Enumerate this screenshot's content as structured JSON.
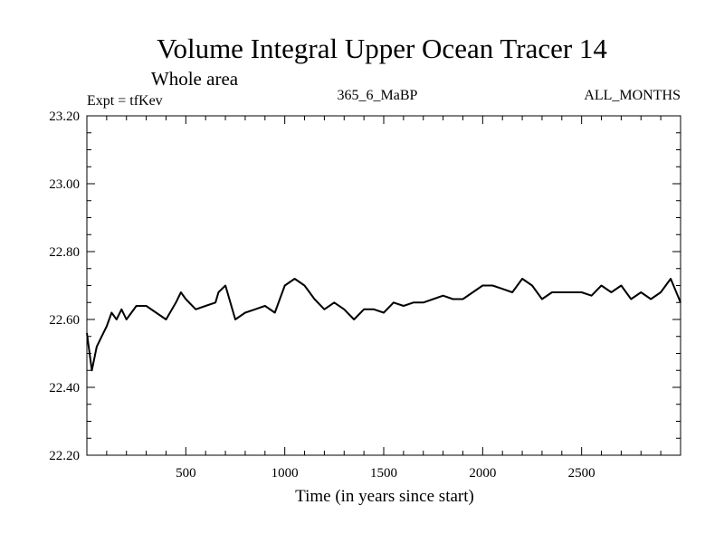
{
  "chart_data": {
    "type": "line",
    "title": "Volume Integral Upper Ocean Tracer 14",
    "subtitle": "Whole area",
    "annotations": {
      "left": "Expt = tfKev",
      "center": "365_6_MaBP",
      "right": "ALL_MONTHS"
    },
    "xlabel": "Time (in years since start)",
    "ylabel": "",
    "xlim": [
      0,
      3000
    ],
    "ylim": [
      22.2,
      23.2
    ],
    "x_ticks": [
      500,
      1000,
      1500,
      2000,
      2500
    ],
    "x_tick_labels": [
      "500",
      "1000",
      "1500",
      "2000",
      "2500"
    ],
    "y_ticks": [
      22.2,
      22.4,
      22.6,
      22.8,
      23.0,
      23.2
    ],
    "y_tick_labels": [
      "22.20",
      "22.40",
      "22.60",
      "22.80",
      "23.00",
      "23.20"
    ],
    "grid": false,
    "legend": "none",
    "series_color": "#000000",
    "series": [
      {
        "x": [
          0,
          25,
          50,
          75,
          100,
          125,
          150,
          175,
          200,
          250,
          300,
          350,
          400,
          450,
          475,
          500,
          550,
          600,
          650,
          665,
          700,
          750,
          800,
          850,
          900,
          950,
          1000,
          1050,
          1100,
          1150,
          1200,
          1250,
          1300,
          1350,
          1400,
          1450,
          1500,
          1550,
          1600,
          1650,
          1700,
          1750,
          1800,
          1850,
          1900,
          1950,
          2000,
          2050,
          2100,
          2150,
          2200,
          2250,
          2300,
          2350,
          2400,
          2450,
          2500,
          2550,
          2600,
          2650,
          2700,
          2750,
          2800,
          2850,
          2900,
          2950,
          3000
        ],
        "y": [
          22.56,
          22.45,
          22.52,
          22.55,
          22.58,
          22.62,
          22.6,
          22.63,
          22.6,
          22.64,
          22.64,
          22.62,
          22.6,
          22.65,
          22.68,
          22.66,
          22.63,
          22.64,
          22.65,
          22.68,
          22.7,
          22.6,
          22.62,
          22.63,
          22.64,
          22.62,
          22.7,
          22.72,
          22.7,
          22.66,
          22.63,
          22.65,
          22.63,
          22.6,
          22.63,
          22.63,
          22.62,
          22.65,
          22.64,
          22.65,
          22.65,
          22.66,
          22.67,
          22.66,
          22.66,
          22.68,
          22.7,
          22.7,
          22.69,
          22.68,
          22.72,
          22.7,
          22.66,
          22.68,
          22.68,
          22.68,
          22.68,
          22.67,
          22.7,
          22.68,
          22.7,
          22.66,
          22.68,
          22.66,
          22.68,
          22.72,
          22.65
        ]
      }
    ]
  }
}
